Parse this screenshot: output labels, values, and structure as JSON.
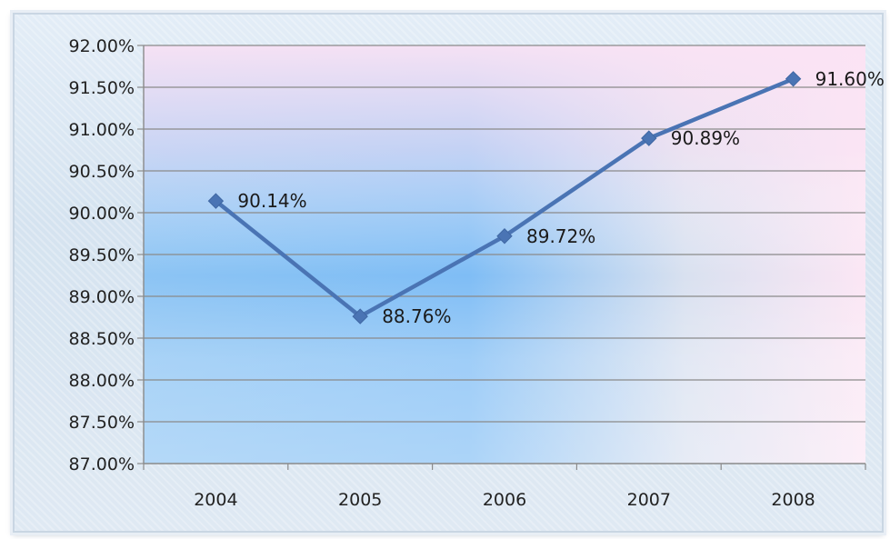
{
  "chart_data": {
    "type": "line",
    "categories": [
      "2004",
      "2005",
      "2006",
      "2007",
      "2008"
    ],
    "series": [
      {
        "values": [
          90.14,
          88.76,
          89.72,
          90.89,
          91.6
        ],
        "data_labels": [
          "90.14%",
          "88.76%",
          "89.72%",
          "90.89%",
          "91.60%"
        ]
      }
    ],
    "y_ticks": [
      "87.00%",
      "87.50%",
      "88.00%",
      "88.50%",
      "89.00%",
      "89.50%",
      "90.00%",
      "90.50%",
      "91.00%",
      "91.50%",
      "92.00%"
    ],
    "ylim": [
      87.0,
      92.0
    ],
    "title": "",
    "xlabel": "",
    "ylabel": "",
    "grid": true,
    "legend": "none",
    "colors": {
      "line": "#4a74b4",
      "marker": "#4a74b4",
      "gridline": "#8a8a8a",
      "axis": "#8a8a8a",
      "plot_bg_left": "#7ab9f2",
      "plot_bg_right": "#fbe6f4"
    }
  }
}
